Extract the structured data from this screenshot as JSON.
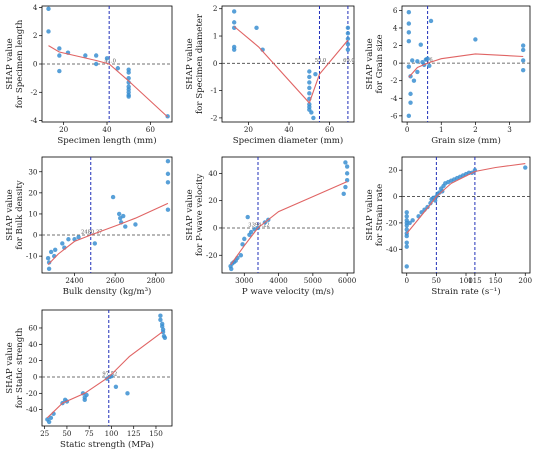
{
  "chart_data": [
    {
      "type": "scatter",
      "xlabel": "Specimen length (mm)",
      "ylabel_lines": [
        "SHAP value",
        "for Specimen length"
      ],
      "xlim": [
        10,
        70
      ],
      "ylim": [
        -4.1,
        4.1
      ],
      "xticks": [
        20,
        40,
        60
      ],
      "yticks": [
        -4,
        -2,
        0,
        2,
        4
      ],
      "threshold": 41,
      "threshold_label": "41.0",
      "points": [
        [
          13,
          3.9
        ],
        [
          13,
          2.3
        ],
        [
          18,
          1.1
        ],
        [
          18,
          0.6
        ],
        [
          18,
          -0.5
        ],
        [
          22,
          0.8
        ],
        [
          30,
          0.6
        ],
        [
          35,
          0.6
        ],
        [
          35,
          0
        ],
        [
          40,
          0.4
        ],
        [
          45,
          -0.3
        ],
        [
          50,
          -0.4
        ],
        [
          50,
          -0.6
        ],
        [
          50,
          -1
        ],
        [
          50,
          -1.3
        ],
        [
          50,
          -1.6
        ],
        [
          50,
          -1.8
        ],
        [
          50,
          -2
        ],
        [
          50,
          -2.2
        ],
        [
          50,
          -2.3
        ],
        [
          68,
          -3.7
        ]
      ],
      "fit": [
        [
          13,
          1.3
        ],
        [
          18,
          0.85
        ],
        [
          25,
          0.6
        ],
        [
          35,
          0.25
        ],
        [
          41,
          0
        ],
        [
          50,
          -1.2
        ],
        [
          68,
          -3.75
        ]
      ]
    },
    {
      "type": "scatter",
      "xlabel": "Specimen diameter (mm)",
      "ylabel_lines": [
        "SHAP value",
        "for Specimen diameter"
      ],
      "xlim": [
        7,
        72
      ],
      "ylim": [
        -2.15,
        2.1
      ],
      "xticks": [
        20,
        40,
        60
      ],
      "yticks": [
        -2,
        -1,
        0,
        1,
        2
      ],
      "threshold": 55,
      "threshold_label": "55.0",
      "threshold2": 69,
      "threshold2_label": "69.0",
      "points": [
        [
          13,
          1.9
        ],
        [
          13,
          1.5
        ],
        [
          13,
          1.3
        ],
        [
          13,
          0.6
        ],
        [
          13,
          0.5
        ],
        [
          24,
          1.3
        ],
        [
          27,
          0.5
        ],
        [
          50,
          -0.3
        ],
        [
          50,
          -0.5
        ],
        [
          50,
          -0.7
        ],
        [
          50,
          -0.9
        ],
        [
          50,
          -1.1
        ],
        [
          50,
          -1.3
        ],
        [
          50,
          -1.5
        ],
        [
          50,
          -1.6
        ],
        [
          50,
          -1.7
        ],
        [
          51,
          -1.8
        ],
        [
          52,
          -2
        ],
        [
          53,
          -0.4
        ],
        [
          69,
          1.3
        ],
        [
          69,
          1.1
        ],
        [
          69,
          0.9
        ],
        [
          69,
          0.7
        ],
        [
          69,
          0.5
        ]
      ],
      "fit": [
        [
          13,
          1.35
        ],
        [
          25,
          0.6
        ],
        [
          50,
          -1.45
        ],
        [
          55,
          -0.4
        ],
        [
          69,
          0.85
        ]
      ]
    },
    {
      "type": "scatter",
      "xlabel": "Grain size (mm)",
      "ylabel_lines": [
        "SHAP value",
        "for Grain size"
      ],
      "xlim": [
        -0.15,
        3.6
      ],
      "ylim": [
        -6.7,
        6.5
      ],
      "xticks": [
        0,
        1,
        2,
        3
      ],
      "yticks": [
        -6,
        -4,
        -2,
        0,
        2,
        4,
        6
      ],
      "threshold": 0.6,
      "threshold_label": "0.6",
      "points": [
        [
          0.05,
          5.8
        ],
        [
          0.05,
          4.5
        ],
        [
          0.05,
          3.5
        ],
        [
          0.05,
          2.5
        ],
        [
          0.05,
          -0.4
        ],
        [
          0.1,
          -1.5
        ],
        [
          0.1,
          -3.5
        ],
        [
          0.1,
          -4.5
        ],
        [
          0.05,
          -6
        ],
        [
          0.15,
          0.3
        ],
        [
          0.2,
          -2
        ],
        [
          0.3,
          -1
        ],
        [
          0.3,
          0.2
        ],
        [
          0.4,
          2.1
        ],
        [
          0.45,
          0.1
        ],
        [
          0.5,
          -0.2
        ],
        [
          0.55,
          0.4
        ],
        [
          0.6,
          0.5
        ],
        [
          0.65,
          -0.3
        ],
        [
          0.7,
          4.8
        ],
        [
          2,
          2.7
        ],
        [
          3.4,
          2
        ],
        [
          3.4,
          1.5
        ],
        [
          3.4,
          0.3
        ],
        [
          3.4,
          -0.8
        ]
      ],
      "fit": [
        [
          0.05,
          -1.6
        ],
        [
          0.3,
          -0.5
        ],
        [
          0.6,
          0
        ],
        [
          1,
          0.5
        ],
        [
          2,
          1.05
        ],
        [
          3.4,
          0.75
        ]
      ]
    },
    {
      "type": "scatter",
      "xlabel": "Bulk density (kg/m³)",
      "ylabel_lines": [
        "SHAP value",
        "for Bulk density"
      ],
      "xlim": [
        2240,
        2880
      ],
      "ylim": [
        -18,
        37
      ],
      "xticks": [
        2400,
        2600,
        2800
      ],
      "yticks": [
        -10,
        0,
        10,
        20,
        30
      ],
      "threshold": 2480,
      "threshold_label": "2480.37",
      "points": [
        [
          2270,
          -11
        ],
        [
          2275,
          -13
        ],
        [
          2275,
          -16
        ],
        [
          2285,
          -8
        ],
        [
          2300,
          -10
        ],
        [
          2305,
          -7
        ],
        [
          2340,
          -4
        ],
        [
          2350,
          -6
        ],
        [
          2370,
          -2
        ],
        [
          2400,
          -2
        ],
        [
          2420,
          -1
        ],
        [
          2500,
          -4
        ],
        [
          2590,
          18
        ],
        [
          2620,
          10
        ],
        [
          2625,
          8
        ],
        [
          2630,
          6
        ],
        [
          2640,
          9
        ],
        [
          2650,
          4
        ],
        [
          2700,
          5
        ],
        [
          2860,
          35
        ],
        [
          2860,
          29
        ],
        [
          2860,
          25
        ],
        [
          2860,
          12
        ]
      ],
      "fit": [
        [
          2270,
          -14
        ],
        [
          2320,
          -9
        ],
        [
          2400,
          -3
        ],
        [
          2480,
          0
        ],
        [
          2620,
          5
        ],
        [
          2700,
          8
        ],
        [
          2860,
          15
        ]
      ]
    },
    {
      "type": "scatter",
      "xlabel": "P wave velocity (m/s)",
      "ylabel_lines": [
        "SHAP value",
        "for P-wave velocity"
      ],
      "xlim": [
        2350,
        6200
      ],
      "ylim": [
        -33,
        52
      ],
      "xticks": [
        3000,
        4000,
        5000,
        6000
      ],
      "yticks": [
        -20,
        0,
        20,
        40
      ],
      "threshold": 3400,
      "threshold_label": "3394.22",
      "points": [
        [
          2600,
          -28
        ],
        [
          2620,
          -30
        ],
        [
          2650,
          -26
        ],
        [
          2700,
          -25
        ],
        [
          2750,
          -24
        ],
        [
          2800,
          -22
        ],
        [
          2900,
          -20
        ],
        [
          2950,
          -12
        ],
        [
          3000,
          -8
        ],
        [
          3100,
          8
        ],
        [
          3150,
          -5
        ],
        [
          3200,
          -3
        ],
        [
          3300,
          -1
        ],
        [
          3400,
          0
        ],
        [
          3600,
          4
        ],
        [
          3700,
          6
        ],
        [
          5900,
          25
        ],
        [
          5950,
          30
        ],
        [
          6000,
          35
        ],
        [
          6000,
          40
        ],
        [
          6000,
          45
        ],
        [
          5950,
          48
        ]
      ],
      "fit": [
        [
          2600,
          -27
        ],
        [
          3000,
          -13
        ],
        [
          3394,
          0
        ],
        [
          4000,
          12
        ],
        [
          5000,
          23
        ],
        [
          6000,
          34
        ]
      ]
    },
    {
      "type": "scatter",
      "xlabel": "Strain rate (s⁻¹)",
      "ylabel_lines": [
        "SHAP value",
        "for Strain rate"
      ],
      "xlim": [
        -8,
        208
      ],
      "ylim": [
        -58,
        30
      ],
      "xticks": [
        0,
        50,
        100,
        115,
        150,
        200
      ],
      "yticks": [
        -40,
        -20,
        0,
        20
      ],
      "threshold": 50,
      "threshold_label": "",
      "threshold2": 115,
      "threshold2_label": "",
      "points": [
        [
          0,
          -12
        ],
        [
          0,
          -15
        ],
        [
          0,
          -18
        ],
        [
          0,
          -20
        ],
        [
          0,
          -22
        ],
        [
          0,
          -25
        ],
        [
          0,
          -28
        ],
        [
          0,
          -30
        ],
        [
          0,
          -35
        ],
        [
          0,
          -38
        ],
        [
          0,
          -53
        ],
        [
          5,
          -20
        ],
        [
          10,
          -18
        ],
        [
          20,
          -15
        ],
        [
          25,
          -12
        ],
        [
          30,
          -10
        ],
        [
          35,
          -8
        ],
        [
          40,
          -5
        ],
        [
          42,
          -2
        ],
        [
          45,
          -1
        ],
        [
          48,
          -3
        ],
        [
          50,
          0
        ],
        [
          52,
          2
        ],
        [
          55,
          3
        ],
        [
          58,
          6
        ],
        [
          60,
          4
        ],
        [
          62,
          8
        ],
        [
          65,
          10
        ],
        [
          70,
          11
        ],
        [
          75,
          12
        ],
        [
          80,
          13
        ],
        [
          85,
          14
        ],
        [
          90,
          15
        ],
        [
          95,
          16
        ],
        [
          100,
          17
        ],
        [
          105,
          18
        ],
        [
          110,
          18
        ],
        [
          115,
          20
        ],
        [
          200,
          22
        ]
      ],
      "fit": [
        [
          0,
          -28
        ],
        [
          20,
          -17
        ],
        [
          40,
          -6
        ],
        [
          50,
          0
        ],
        [
          75,
          10
        ],
        [
          115,
          19
        ],
        [
          150,
          22
        ],
        [
          200,
          25
        ]
      ]
    },
    {
      "type": "scatter",
      "xlabel": "Static strength (MPa)",
      "ylabel_lines": [
        "SHAP value",
        "for Static strength"
      ],
      "xlim": [
        22,
        168
      ],
      "ylim": [
        -60,
        82
      ],
      "xticks": [
        25,
        50,
        75,
        100,
        125,
        150
      ],
      "yticks": [
        -40,
        -20,
        0,
        20,
        40,
        60
      ],
      "threshold": 97,
      "threshold_label": "97.52",
      "points": [
        [
          28,
          -52
        ],
        [
          30,
          -55
        ],
        [
          32,
          -50
        ],
        [
          35,
          -45
        ],
        [
          45,
          -32
        ],
        [
          48,
          -28
        ],
        [
          50,
          -30
        ],
        [
          68,
          -20
        ],
        [
          70,
          -25
        ],
        [
          70,
          -28
        ],
        [
          72,
          -22
        ],
        [
          95,
          -2
        ],
        [
          98,
          0
        ],
        [
          100,
          1
        ],
        [
          105,
          -12
        ],
        [
          118,
          -20
        ],
        [
          155,
          75
        ],
        [
          155,
          70
        ],
        [
          157,
          65
        ],
        [
          157,
          62
        ],
        [
          158,
          58
        ],
        [
          158,
          55
        ],
        [
          159,
          50
        ],
        [
          160,
          48
        ]
      ],
      "fit": [
        [
          28,
          -50
        ],
        [
          45,
          -32
        ],
        [
          70,
          -20
        ],
        [
          97,
          0
        ],
        [
          120,
          25
        ],
        [
          157,
          55
        ]
      ]
    }
  ]
}
